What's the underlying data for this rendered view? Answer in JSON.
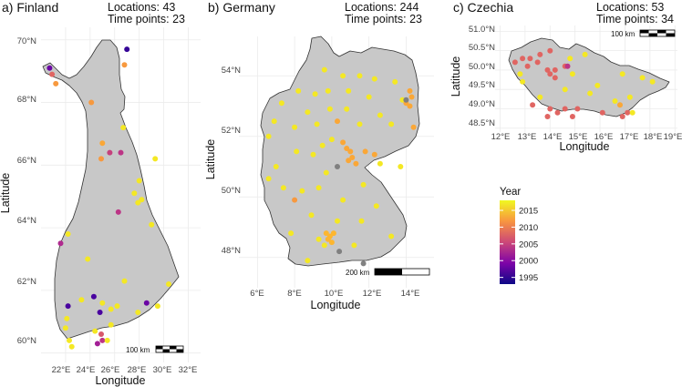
{
  "colors": {
    "land": "#c8c8c8",
    "missing": "#808080"
  },
  "legend": {
    "title": "Year",
    "ticks": [
      2015,
      2010,
      2005,
      2000,
      1995
    ],
    "range": [
      1993,
      2018
    ]
  },
  "panels": [
    {
      "id": "finland",
      "title": "a) Finland",
      "locations_text": "Locations: 43",
      "timepoints_text": "Time points: 23",
      "xlabel": "Longitude",
      "ylabel": "Latitude",
      "xticks": [
        "22°E",
        "24°E",
        "26°E",
        "28°E",
        "30°E",
        "32°E"
      ],
      "yticks": [
        "70°N",
        "68°N",
        "66°N",
        "64°N",
        "62°N",
        "60°N"
      ],
      "scalebar": "100 km",
      "points": [
        {
          "lon": 27.0,
          "lat": 69.7,
          "year": 1995
        },
        {
          "lon": 20.7,
          "lat": 69.1,
          "year": 1998
        },
        {
          "lon": 20.9,
          "lat": 68.9,
          "year": 2008
        },
        {
          "lon": 21.2,
          "lat": 68.6,
          "year": 2012
        },
        {
          "lon": 26.8,
          "lat": 69.2,
          "year": 2012
        },
        {
          "lon": 24.1,
          "lat": 68.0,
          "year": 2012
        },
        {
          "lon": 26.7,
          "lat": 67.2,
          "year": 2017
        },
        {
          "lon": 25.0,
          "lat": 66.7,
          "year": 2013
        },
        {
          "lon": 25.6,
          "lat": 66.4,
          "year": 2005
        },
        {
          "lon": 26.5,
          "lat": 66.4,
          "year": 2004
        },
        {
          "lon": 24.9,
          "lat": 66.2,
          "year": 2012
        },
        {
          "lon": 29.3,
          "lat": 66.2,
          "year": 2017
        },
        {
          "lon": 28.0,
          "lat": 65.5,
          "year": 2017
        },
        {
          "lon": 27.6,
          "lat": 65.1,
          "year": 2017
        },
        {
          "lon": 28.2,
          "lat": 64.9,
          "year": 2017
        },
        {
          "lon": 27.9,
          "lat": 64.8,
          "year": 2017
        },
        {
          "lon": 26.3,
          "lat": 64.5,
          "year": 2004
        },
        {
          "lon": 29.0,
          "lat": 64.1,
          "year": 2017
        },
        {
          "lon": 22.2,
          "lat": 63.8,
          "year": 2017
        },
        {
          "lon": 21.6,
          "lat": 63.5,
          "year": 2003
        },
        {
          "lon": 23.8,
          "lat": 63.0,
          "year": 2017
        },
        {
          "lon": 26.8,
          "lat": 62.3,
          "year": 2017
        },
        {
          "lon": 30.4,
          "lat": 62.2,
          "year": 2017
        },
        {
          "lon": 28.6,
          "lat": 61.6,
          "year": 1998
        },
        {
          "lon": 29.5,
          "lat": 61.5,
          "year": 2017
        },
        {
          "lon": 22.2,
          "lat": 61.5,
          "year": 1996
        },
        {
          "lon": 23.3,
          "lat": 61.7,
          "year": 2017
        },
        {
          "lon": 24.3,
          "lat": 61.8,
          "year": 1996
        },
        {
          "lon": 25.0,
          "lat": 61.6,
          "year": 2017
        },
        {
          "lon": 25.7,
          "lat": 61.4,
          "year": 2017
        },
        {
          "lon": 26.2,
          "lat": 61.5,
          "year": 2017
        },
        {
          "lon": 24.8,
          "lat": 61.3,
          "year": 1996
        },
        {
          "lon": 22.1,
          "lat": 61.1,
          "year": 2017
        },
        {
          "lon": 27.9,
          "lat": 61.3,
          "year": 2017
        },
        {
          "lon": 25.7,
          "lat": 60.9,
          "year": 2017
        },
        {
          "lon": 22.0,
          "lat": 60.8,
          "year": 2017
        },
        {
          "lon": 22.3,
          "lat": 60.4,
          "year": 2017
        },
        {
          "lon": 22.5,
          "lat": 60.2,
          "year": 2017
        },
        {
          "lon": 24.4,
          "lat": 60.7,
          "year": 2017
        },
        {
          "lon": 24.9,
          "lat": 60.6,
          "year": 2007
        },
        {
          "lon": 25.0,
          "lat": 60.4,
          "year": 2004
        },
        {
          "lon": 24.6,
          "lat": 60.3,
          "year": 2002
        },
        {
          "lon": 25.4,
          "lat": 60.4,
          "year": 2017
        }
      ]
    },
    {
      "id": "germany",
      "title": "b) Germany",
      "locations_text": "Locations: 244",
      "timepoints_text": "Time points: 23",
      "xlabel": "Longitude",
      "ylabel": "Latitude",
      "xticks": [
        "6°E",
        "8°E",
        "10°E",
        "12°E",
        "14°E"
      ],
      "yticks": [
        "54°N",
        "52°N",
        "50°N",
        "48°N"
      ],
      "scalebar": "200 km",
      "points": [
        {
          "lon": 9.6,
          "lat": 54.2,
          "year": 2017
        },
        {
          "lon": 10.6,
          "lat": 54.0,
          "year": 2017
        },
        {
          "lon": 11.5,
          "lat": 54.0,
          "year": 2017
        },
        {
          "lon": 12.3,
          "lat": 53.9,
          "year": 2017
        },
        {
          "lon": 13.4,
          "lat": 53.8,
          "year": 2017
        },
        {
          "lon": 8.2,
          "lat": 53.5,
          "year": 2017
        },
        {
          "lon": 9.1,
          "lat": 53.4,
          "year": 2017
        },
        {
          "lon": 9.8,
          "lat": 53.5,
          "year": 2017
        },
        {
          "lon": 10.9,
          "lat": 53.5,
          "year": 2017
        },
        {
          "lon": 12.0,
          "lat": 53.3,
          "year": 2017
        },
        {
          "lon": 13.8,
          "lat": 53.2,
          "year": 2017
        },
        {
          "lon": 14.2,
          "lat": 53.5,
          "year": 2013
        },
        {
          "lon": 14.3,
          "lat": 53.3,
          "year": 2013
        },
        {
          "lon": 14.0,
          "lat": 53.1,
          "year": 2013
        },
        {
          "lon": 14.2,
          "lat": 53.0,
          "year": 2013
        },
        {
          "lon": 14.0,
          "lat": 53.2,
          "year": null
        },
        {
          "lon": 7.3,
          "lat": 53.1,
          "year": 2017
        },
        {
          "lon": 8.7,
          "lat": 52.8,
          "year": 2017
        },
        {
          "lon": 9.9,
          "lat": 52.9,
          "year": 2017
        },
        {
          "lon": 10.8,
          "lat": 52.9,
          "year": 2017
        },
        {
          "lon": 12.6,
          "lat": 52.7,
          "year": 2017
        },
        {
          "lon": 6.9,
          "lat": 52.5,
          "year": 2017
        },
        {
          "lon": 8.0,
          "lat": 52.3,
          "year": 2017
        },
        {
          "lon": 9.2,
          "lat": 52.4,
          "year": 2017
        },
        {
          "lon": 10.3,
          "lat": 52.5,
          "year": 2013
        },
        {
          "lon": 11.5,
          "lat": 52.4,
          "year": 2017
        },
        {
          "lon": 13.2,
          "lat": 52.4,
          "year": 2017
        },
        {
          "lon": 14.4,
          "lat": 52.3,
          "year": 2013
        },
        {
          "lon": 6.6,
          "lat": 52.0,
          "year": 2017
        },
        {
          "lon": 10.0,
          "lat": 51.9,
          "year": 2017
        },
        {
          "lon": 10.6,
          "lat": 51.8,
          "year": 2013
        },
        {
          "lon": 10.8,
          "lat": 51.6,
          "year": 2013
        },
        {
          "lon": 11.0,
          "lat": 51.5,
          "year": 2013
        },
        {
          "lon": 11.1,
          "lat": 51.3,
          "year": 2013
        },
        {
          "lon": 11.3,
          "lat": 51.1,
          "year": 2013
        },
        {
          "lon": 10.9,
          "lat": 51.2,
          "year": 2013
        },
        {
          "lon": 11.8,
          "lat": 51.5,
          "year": 2013
        },
        {
          "lon": 12.3,
          "lat": 51.4,
          "year": 2013
        },
        {
          "lon": 12.6,
          "lat": 51.1,
          "year": 2017
        },
        {
          "lon": 13.7,
          "lat": 51.0,
          "year": 2017
        },
        {
          "lon": 8.1,
          "lat": 51.5,
          "year": 2017
        },
        {
          "lon": 9.0,
          "lat": 51.4,
          "year": 2017
        },
        {
          "lon": 9.5,
          "lat": 51.7,
          "year": 2017
        },
        {
          "lon": 7.0,
          "lat": 51.0,
          "year": 2017
        },
        {
          "lon": 9.7,
          "lat": 50.8,
          "year": 2017
        },
        {
          "lon": 10.3,
          "lat": 51.0,
          "year": null
        },
        {
          "lon": 6.6,
          "lat": 50.6,
          "year": 2017
        },
        {
          "lon": 7.4,
          "lat": 50.3,
          "year": 2017
        },
        {
          "lon": 8.4,
          "lat": 50.2,
          "year": 2017
        },
        {
          "lon": 9.3,
          "lat": 50.3,
          "year": 2017
        },
        {
          "lon": 11.7,
          "lat": 50.4,
          "year": 2017
        },
        {
          "lon": 8.0,
          "lat": 49.9,
          "year": 2012
        },
        {
          "lon": 10.6,
          "lat": 49.9,
          "year": 2017
        },
        {
          "lon": 12.4,
          "lat": 49.7,
          "year": 2017
        },
        {
          "lon": 8.9,
          "lat": 49.4,
          "year": 2017
        },
        {
          "lon": 10.3,
          "lat": 49.2,
          "year": 2017
        },
        {
          "lon": 11.6,
          "lat": 49.2,
          "year": 2017
        },
        {
          "lon": 7.8,
          "lat": 48.8,
          "year": 2017
        },
        {
          "lon": 9.7,
          "lat": 48.8,
          "year": 2014
        },
        {
          "lon": 9.9,
          "lat": 48.7,
          "year": 2014
        },
        {
          "lon": 10.1,
          "lat": 48.8,
          "year": 2014
        },
        {
          "lon": 9.8,
          "lat": 48.6,
          "year": 2014
        },
        {
          "lon": 10.0,
          "lat": 48.5,
          "year": 2014
        },
        {
          "lon": 9.6,
          "lat": 48.4,
          "year": 2017
        },
        {
          "lon": 9.3,
          "lat": 48.6,
          "year": 2017
        },
        {
          "lon": 11.2,
          "lat": 48.4,
          "year": 2017
        },
        {
          "lon": 10.4,
          "lat": 48.2,
          "year": null
        },
        {
          "lon": 13.2,
          "lat": 48.7,
          "year": 2017
        },
        {
          "lon": 8.7,
          "lat": 47.9,
          "year": 2017
        },
        {
          "lon": 11.7,
          "lat": 47.8,
          "year": null
        }
      ]
    },
    {
      "id": "czechia",
      "title": "c) Czechia",
      "locations_text": "Locations: 53",
      "timepoints_text": "Time points: 34",
      "xlabel": "Longitude",
      "ylabel": "Latitude",
      "xticks": [
        "12°E",
        "13°E",
        "14°E",
        "15°E",
        "16°E",
        "17°E",
        "18°E",
        "19°E"
      ],
      "yticks": [
        "51.0°N",
        "50.5°N",
        "50.0°N",
        "49.5°N",
        "49.0°N",
        "48.5°N"
      ],
      "scalebar": "100 km",
      "points": [
        {
          "lon": 12.6,
          "lat": 50.2,
          "year": 2008
        },
        {
          "lon": 12.9,
          "lat": 50.3,
          "year": 2008
        },
        {
          "lon": 13.2,
          "lat": 50.3,
          "year": 2008
        },
        {
          "lon": 13.6,
          "lat": 50.4,
          "year": 2008
        },
        {
          "lon": 14.0,
          "lat": 50.5,
          "year": 2008
        },
        {
          "lon": 12.8,
          "lat": 49.9,
          "year": 2017
        },
        {
          "lon": 13.1,
          "lat": 50.1,
          "year": 2008
        },
        {
          "lon": 13.5,
          "lat": 50.2,
          "year": 2008
        },
        {
          "lon": 13.9,
          "lat": 50.0,
          "year": 2008
        },
        {
          "lon": 14.0,
          "lat": 49.9,
          "year": 2008
        },
        {
          "lon": 14.2,
          "lat": 50.0,
          "year": 2008
        },
        {
          "lon": 14.6,
          "lat": 50.1,
          "year": 2008
        },
        {
          "lon": 14.7,
          "lat": 50.1,
          "year": 2004
        },
        {
          "lon": 14.8,
          "lat": 50.3,
          "year": 2017
        },
        {
          "lon": 15.4,
          "lat": 50.4,
          "year": 2017
        },
        {
          "lon": 14.9,
          "lat": 49.9,
          "year": 2017
        },
        {
          "lon": 12.9,
          "lat": 49.7,
          "year": 2017
        },
        {
          "lon": 14.2,
          "lat": 49.8,
          "year": 2008
        },
        {
          "lon": 14.6,
          "lat": 49.5,
          "year": 2017
        },
        {
          "lon": 16.9,
          "lat": 49.9,
          "year": 2017
        },
        {
          "lon": 17.7,
          "lat": 49.8,
          "year": 2017
        },
        {
          "lon": 18.1,
          "lat": 49.7,
          "year": 2017
        },
        {
          "lon": 13.6,
          "lat": 49.3,
          "year": 2017
        },
        {
          "lon": 15.6,
          "lat": 49.4,
          "year": 2017
        },
        {
          "lon": 16.6,
          "lat": 49.2,
          "year": 2017
        },
        {
          "lon": 16.8,
          "lat": 49.1,
          "year": 2013
        },
        {
          "lon": 17.2,
          "lat": 49.3,
          "year": 2017
        },
        {
          "lon": 13.3,
          "lat": 49.1,
          "year": 2008
        },
        {
          "lon": 14.0,
          "lat": 49.0,
          "year": 2008
        },
        {
          "lon": 14.3,
          "lat": 48.9,
          "year": 2008
        },
        {
          "lon": 14.6,
          "lat": 49.0,
          "year": 2008
        },
        {
          "lon": 15.1,
          "lat": 49.0,
          "year": 2008
        },
        {
          "lon": 14.9,
          "lat": 48.8,
          "year": 2008
        },
        {
          "lon": 16.1,
          "lat": 48.9,
          "year": 2008
        },
        {
          "lon": 16.9,
          "lat": 48.8,
          "year": 2008
        },
        {
          "lon": 17.1,
          "lat": 48.9,
          "year": 2008
        },
        {
          "lon": 17.3,
          "lat": 48.9,
          "year": 2017
        },
        {
          "lon": 13.9,
          "lat": 48.8,
          "year": 2008
        },
        {
          "lon": 15.9,
          "lat": 49.6,
          "year": 2017
        }
      ]
    }
  ]
}
